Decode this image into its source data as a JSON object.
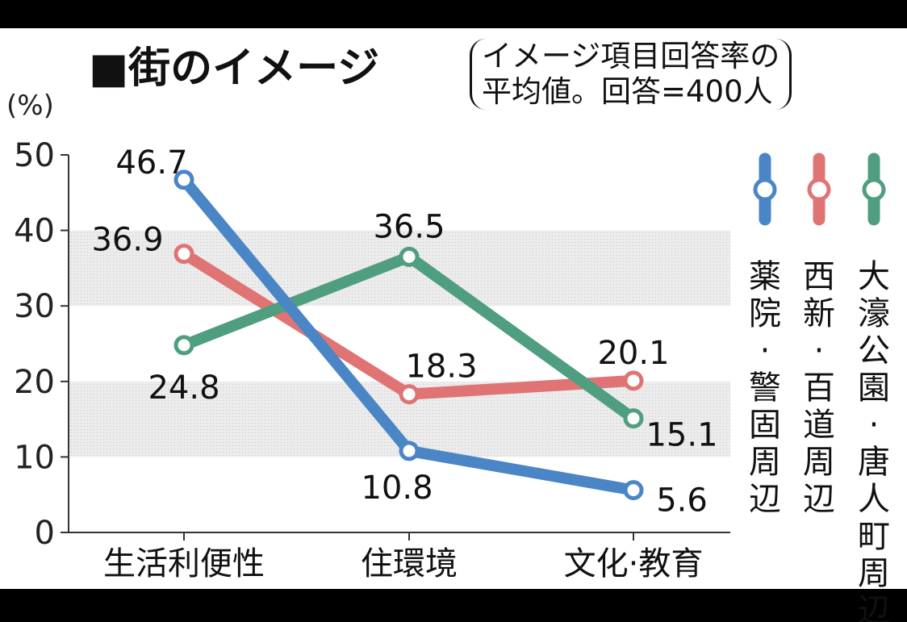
{
  "chart_data": {
    "type": "line",
    "title": "■街のイメージ",
    "subtitle_lines": [
      "イメージ項目回答率の",
      "平均値。回答=400人"
    ],
    "ylabel": "(%)",
    "ylim": [
      0,
      50
    ],
    "yticks": [
      "0",
      "10",
      "20",
      "30",
      "40",
      "50"
    ],
    "categories": [
      "生活利便性",
      "住環境",
      "文化·教育"
    ],
    "legend_position": "right",
    "series": [
      {
        "name": "薬院·警固周辺",
        "color": "#4a86c5",
        "values": [
          46.7,
          10.8,
          5.6
        ],
        "labels": [
          "46.7",
          "10.8",
          "5.6"
        ]
      },
      {
        "name": "西新·百道周辺",
        "color": "#e07474",
        "values": [
          36.9,
          18.3,
          20.1
        ],
        "labels": [
          "36.9",
          "18.3",
          "20.1"
        ]
      },
      {
        "name": "大濠公園·唐人町周辺",
        "color": "#4f9e80",
        "values": [
          24.8,
          36.5,
          15.1
        ],
        "labels": [
          "24.8",
          "36.5",
          "15.1"
        ]
      }
    ]
  }
}
